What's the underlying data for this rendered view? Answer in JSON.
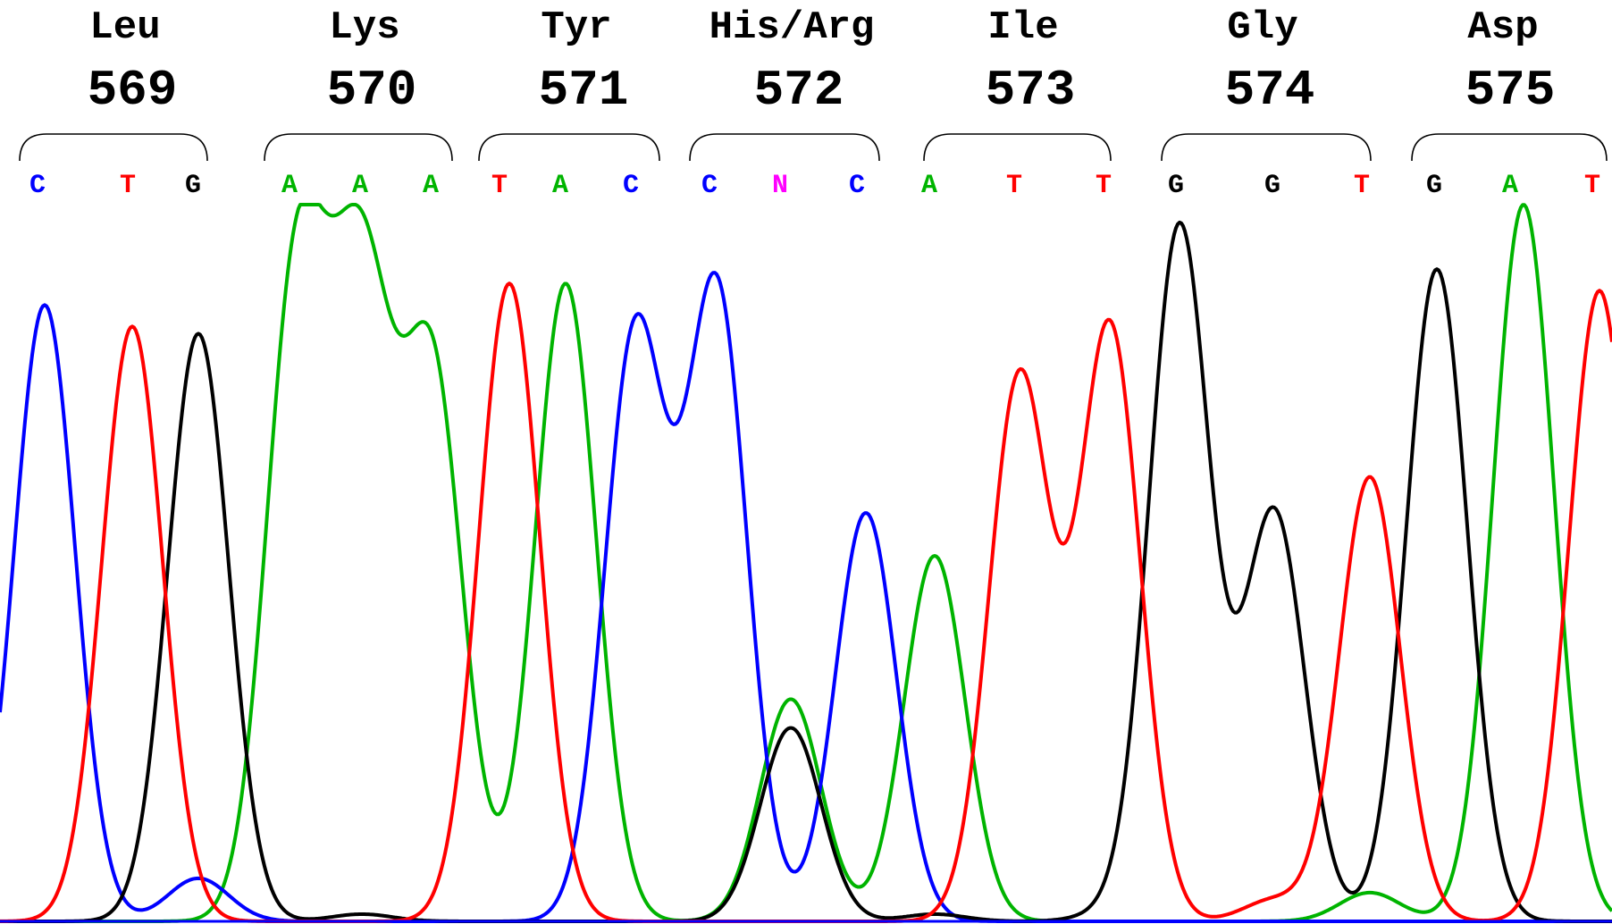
{
  "colors": {
    "A": "#00b400",
    "C": "#0000ff",
    "G": "#000000",
    "T": "#ff0000",
    "N": "#ff00ff",
    "variant_label": "#cc0000"
  },
  "codons": [
    {
      "amino_acid": "Leu",
      "position": "569",
      "bases": [
        "C",
        "T",
        "G"
      ],
      "variant": false
    },
    {
      "amino_acid": "Lys",
      "position": "570",
      "bases": [
        "A",
        "A",
        "A"
      ],
      "variant": false
    },
    {
      "amino_acid": "Tyr",
      "position": "571",
      "bases": [
        "T",
        "A",
        "C"
      ],
      "variant": false
    },
    {
      "amino_acid": "His/Arg",
      "position": "572",
      "bases": [
        "C",
        "N",
        "C"
      ],
      "variant": true
    },
    {
      "amino_acid": "Ile",
      "position": "573",
      "bases": [
        "A",
        "T",
        "T"
      ],
      "variant": false
    },
    {
      "amino_acid": "Gly",
      "position": "574",
      "bases": [
        "G",
        "G",
        "T"
      ],
      "variant": false
    },
    {
      "amino_acid": "Asp",
      "position": "575",
      "bases": [
        "G",
        "A",
        "T"
      ],
      "variant": false
    }
  ],
  "chart_data": {
    "type": "line",
    "description_units": "relative fluorescence signal (0-100) per base channel across 21 base calls",
    "base_calls": [
      "C",
      "T",
      "G",
      "A",
      "A",
      "A",
      "T",
      "A",
      "C",
      "C",
      "N",
      "C",
      "A",
      "T",
      "T",
      "G",
      "G",
      "T",
      "G",
      "A",
      "T"
    ],
    "series": [
      {
        "name": "A",
        "peaks": [
          {
            "base_index": 3,
            "height": 90
          },
          {
            "base_index": 4,
            "height": 85
          },
          {
            "base_index": 5,
            "height": 76
          },
          {
            "base_index": 7,
            "height": 89
          },
          {
            "base_index": 10,
            "height": 31
          },
          {
            "base_index": 12,
            "height": 51
          },
          {
            "base_index": 17,
            "height": 4
          },
          {
            "base_index": 19,
            "height": 100
          }
        ]
      },
      {
        "name": "C",
        "peaks": [
          {
            "base_index": 0,
            "height": 86
          },
          {
            "base_index": 2,
            "height": 6
          },
          {
            "base_index": 8,
            "height": 82
          },
          {
            "base_index": 9,
            "height": 88
          },
          {
            "base_index": 11,
            "height": 57
          }
        ]
      },
      {
        "name": "G",
        "peaks": [
          {
            "base_index": 2,
            "height": 82
          },
          {
            "base_index": 4,
            "height": 1
          },
          {
            "base_index": 10,
            "height": 27
          },
          {
            "base_index": 12,
            "height": 1
          },
          {
            "base_index": 14,
            "height": 1
          },
          {
            "base_index": 15,
            "height": 97
          },
          {
            "base_index": 16,
            "height": 57
          },
          {
            "base_index": 18,
            "height": 91
          }
        ]
      },
      {
        "name": "T",
        "peaks": [
          {
            "base_index": 1,
            "height": 83
          },
          {
            "base_index": 6,
            "height": 89
          },
          {
            "base_index": 13,
            "height": 76
          },
          {
            "base_index": 14,
            "height": 83
          },
          {
            "base_index": 16,
            "height": 3
          },
          {
            "base_index": 17,
            "height": 62
          },
          {
            "base_index": 20,
            "height": 88
          }
        ]
      }
    ]
  }
}
